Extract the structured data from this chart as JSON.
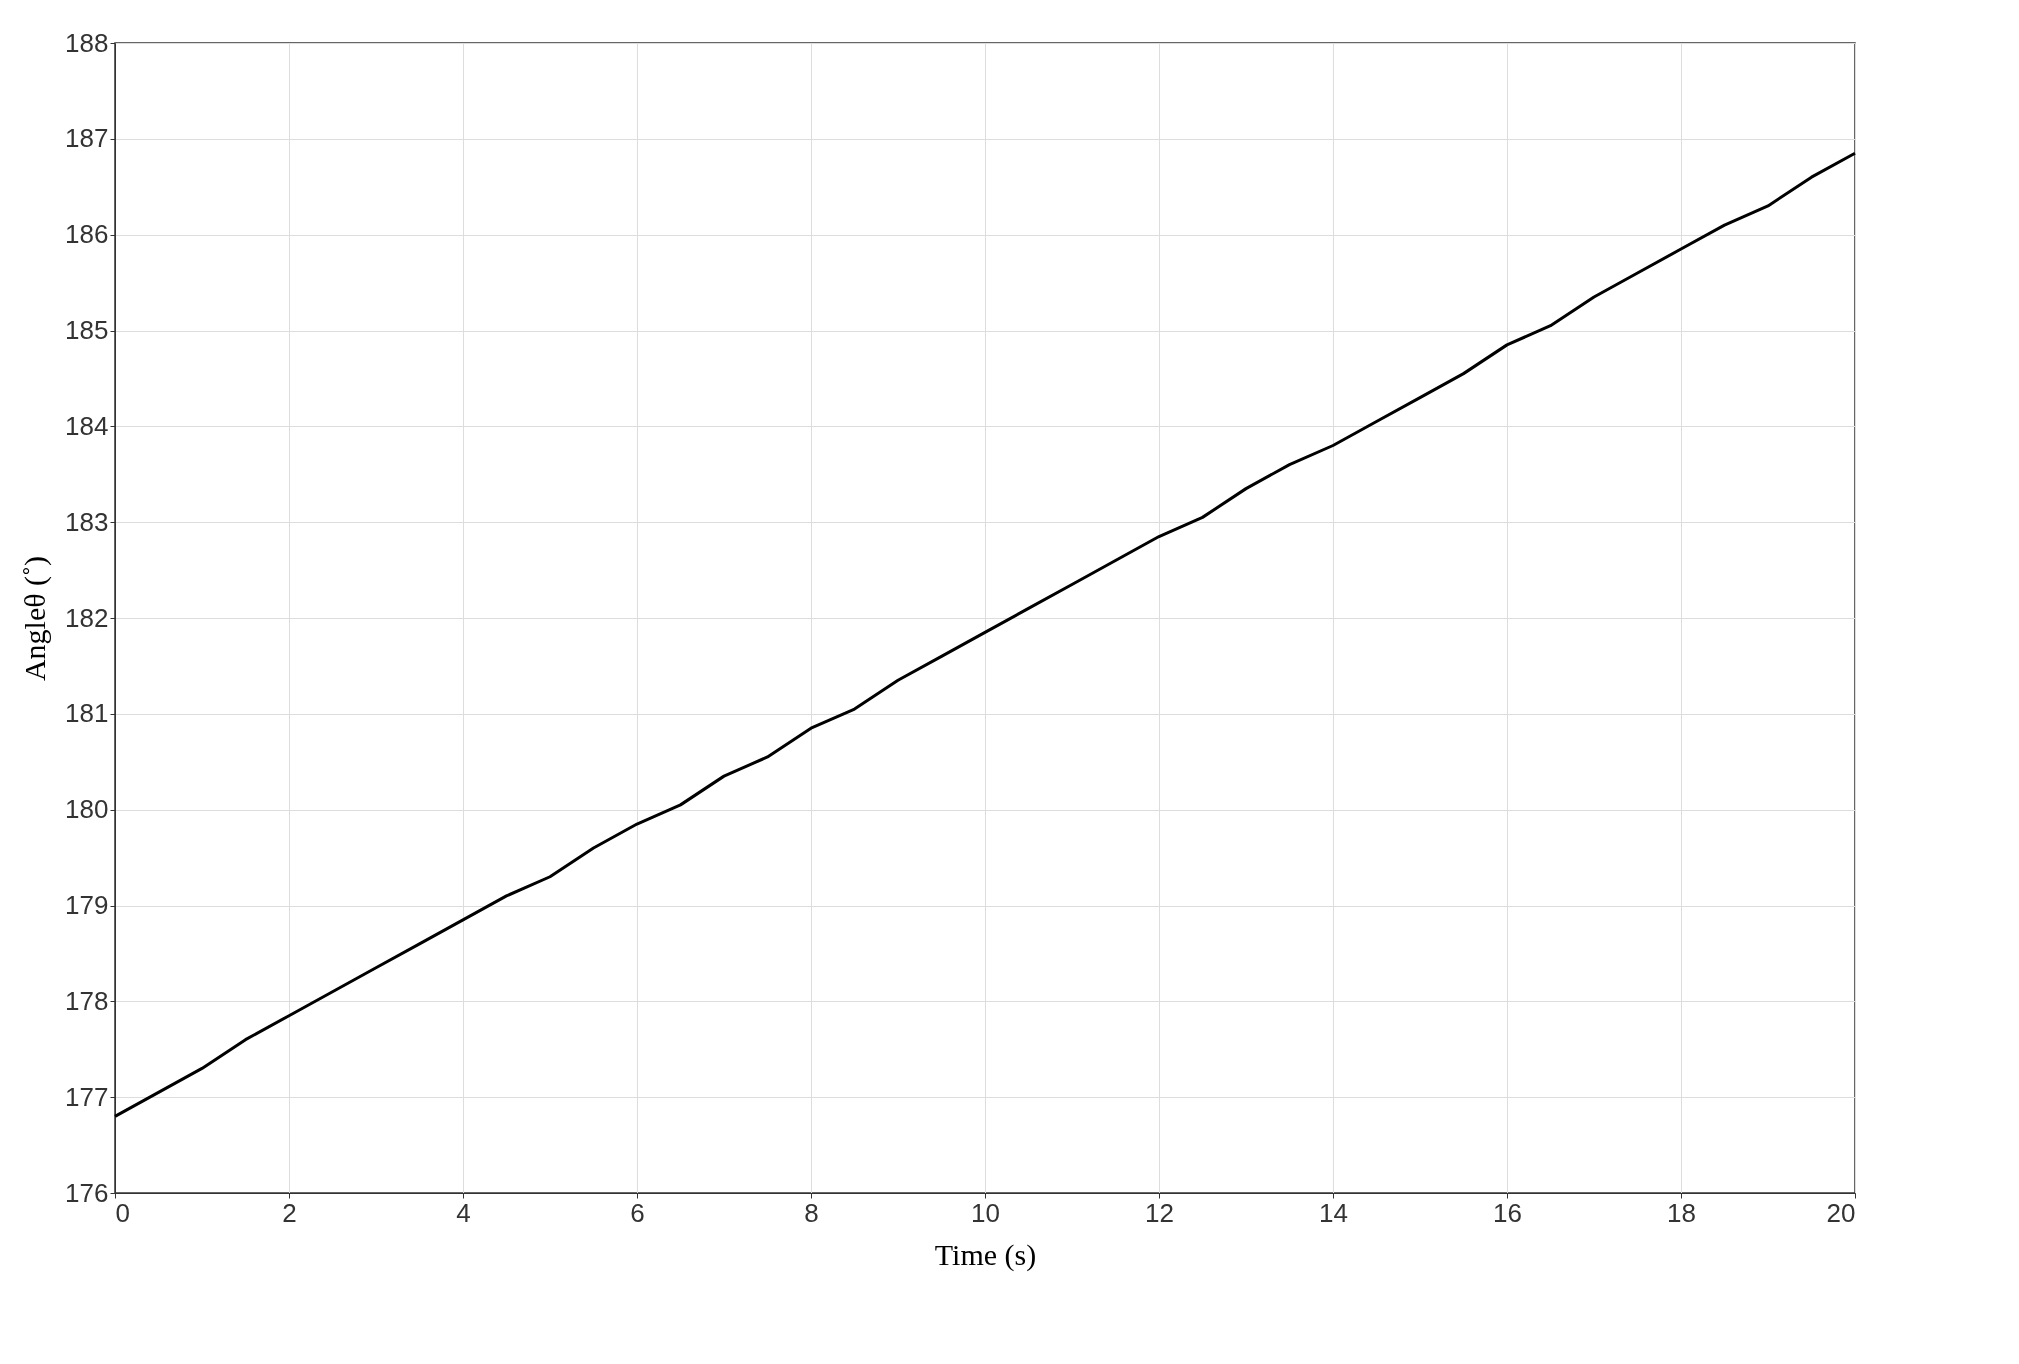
{
  "chart_data": {
    "type": "line",
    "xlabel": "Time (s)",
    "ylabel": "Angleθ (˚)",
    "x": [
      0,
      0.5,
      1,
      1.5,
      2,
      2.5,
      3,
      3.5,
      4,
      4.5,
      5,
      5.5,
      6,
      6.5,
      7,
      7.5,
      8,
      8.5,
      9,
      9.5,
      10,
      10.5,
      11,
      11.5,
      12,
      12.5,
      13,
      13.5,
      14,
      14.5,
      15,
      15.5,
      16,
      16.5,
      17,
      17.5,
      18,
      18.5,
      19,
      19.5,
      20
    ],
    "series": [
      {
        "color": "#000000",
        "values": [
          176.8,
          177.05,
          177.3,
          177.6,
          177.85,
          178.1,
          178.35,
          178.6,
          178.85,
          179.1,
          179.3,
          179.6,
          179.85,
          180.05,
          180.35,
          180.55,
          180.85,
          181.05,
          181.35,
          181.6,
          181.85,
          182.1,
          182.35,
          182.6,
          182.85,
          183.05,
          183.35,
          183.6,
          183.8,
          184.05,
          184.3,
          184.55,
          184.85,
          185.05,
          185.35,
          185.6,
          185.85,
          186.1,
          186.3,
          186.6,
          186.85
        ]
      }
    ],
    "xlim": [
      0,
      20
    ],
    "xticks": [
      0,
      2,
      4,
      6,
      8,
      10,
      12,
      14,
      16,
      18,
      20
    ],
    "ylim": [
      176,
      188
    ],
    "yticks": [
      176,
      177,
      178,
      179,
      180,
      181,
      182,
      183,
      184,
      185,
      186,
      187,
      188
    ],
    "grid": true,
    "line_style": "solid",
    "marker": "none"
  }
}
